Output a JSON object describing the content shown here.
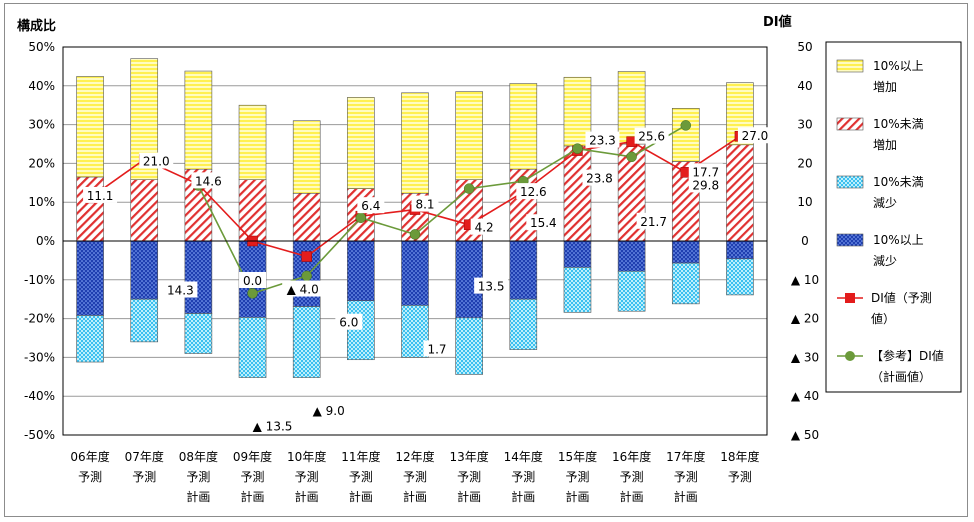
{
  "chart_data": {
    "type": "bar",
    "left_axis_title": "構成比",
    "right_axis_title": "DI値",
    "left_ylim": [
      -50,
      50
    ],
    "left_ticks": [
      50,
      40,
      30,
      20,
      10,
      0,
      -10,
      -20,
      -30,
      -40,
      -50
    ],
    "left_tick_labels": [
      "50%",
      "40%",
      "30%",
      "20%",
      "10%",
      "0%",
      "-10%",
      "-20%",
      "-30%",
      "-40%",
      "-50%"
    ],
    "right_ticks": [
      50,
      40,
      30,
      20,
      10,
      0,
      -10,
      -20,
      -30,
      -40,
      -50
    ],
    "right_tick_labels": [
      "50",
      "40",
      "30",
      "20",
      "10",
      "0",
      "▲ 10",
      "▲ 20",
      "▲ 30",
      "▲ 40",
      "▲ 50"
    ],
    "categories": [
      {
        "line1": "06年度",
        "line2": "予測"
      },
      {
        "line1": "07年度",
        "line2": "予測"
      },
      {
        "line1": "08年度",
        "line2": "予測",
        "line3": "計画"
      },
      {
        "line1": "09年度",
        "line2": "予測",
        "line3": "計画"
      },
      {
        "line1": "10年度",
        "line2": "予測",
        "line3": "計画"
      },
      {
        "line1": "11年度",
        "line2": "予測",
        "line3": "計画"
      },
      {
        "line1": "12年度",
        "line2": "予測",
        "line3": "計画"
      },
      {
        "line1": "13年度",
        "line2": "予測",
        "line3": "計画"
      },
      {
        "line1": "14年度",
        "line2": "予測",
        "line3": "計画"
      },
      {
        "line1": "15年度",
        "line2": "予測",
        "line3": "計画"
      },
      {
        "line1": "16年度",
        "line2": "予測",
        "line3": "計画"
      },
      {
        "line1": "17年度",
        "line2": "予測",
        "line3": "計画"
      },
      {
        "line1": "18年度",
        "line2": "予測"
      }
    ],
    "series": [
      {
        "name": "10%未満増加",
        "legend_line1": "10%未満",
        "legend_line2": "増加",
        "kind": "bar",
        "color": "#e03030",
        "values": [
          16.5,
          15.8,
          18.5,
          15.8,
          12.3,
          13.5,
          12.3,
          15.8,
          18.5,
          24.5,
          25.0,
          20.5,
          24.8
        ]
      },
      {
        "name": "10%以上増加",
        "legend_line1": "10%以上",
        "legend_line2": "増加",
        "kind": "bar",
        "color": "#fff36b",
        "values": [
          25.9,
          31.2,
          25.3,
          19.2,
          18.7,
          23.5,
          25.9,
          22.7,
          22.1,
          17.7,
          18.7,
          13.7,
          16.0
        ]
      },
      {
        "name": "10%未満減少",
        "legend_line1": "10%未満",
        "legend_line2": "減少",
        "kind": "bar",
        "color": "#5ccbf0",
        "values": [
          -12.0,
          -11.0,
          -10.3,
          -15.5,
          -18.3,
          -15.2,
          -13.4,
          -14.6,
          -13.0,
          -11.6,
          -10.3,
          -10.5,
          -9.3
        ]
      },
      {
        "name": "10%以上減少",
        "legend_line1": "10%以上",
        "legend_line2": "減少",
        "kind": "bar",
        "color": "#2f57c8",
        "values": [
          -19.2,
          -15.0,
          -18.7,
          -19.7,
          -16.9,
          -15.4,
          -16.6,
          -19.8,
          -15.0,
          -6.8,
          -7.8,
          -5.7,
          -4.6
        ]
      },
      {
        "name": "DI値（予測値）",
        "legend_line1": "DI値（予測",
        "legend_line2": "値）",
        "kind": "line",
        "color": "#e31c1c",
        "values": [
          11.1,
          21.0,
          14.6,
          0.0,
          -4.0,
          6.4,
          8.1,
          4.2,
          12.6,
          23.3,
          25.6,
          17.7,
          27.0
        ],
        "labels": [
          "11.1",
          "21.0",
          "14.6",
          "0.0",
          "▲ 4.0",
          "6.4",
          "8.1",
          "4.2",
          "12.6",
          "23.3",
          "25.6",
          "17.7",
          "27.0"
        ]
      },
      {
        "name": "【参考】DI値（計画値）",
        "legend_line1": "【参考】DI値",
        "legend_line2": "（計画値）",
        "kind": "line",
        "color": "#6b9a3a",
        "values": [
          null,
          null,
          14.3,
          -13.5,
          -9.0,
          6.0,
          1.7,
          13.5,
          15.4,
          23.8,
          21.7,
          29.8,
          null
        ],
        "labels": [
          null,
          null,
          "14.3",
          "▲ 13.5",
          "▲ 9.0",
          "6.0",
          "1.7",
          "13.5",
          "15.4",
          "23.8",
          "21.7",
          "29.8",
          null
        ]
      }
    ]
  }
}
